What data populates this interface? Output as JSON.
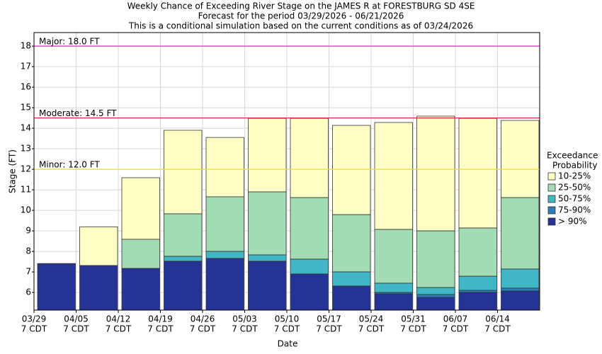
{
  "chart_data": {
    "type": "bar",
    "title": [
      "Weekly Chance of Exceeding River Stage on the JAMES R at FORESTBURG SD 4SE",
      "Forecast for the period 03/29/2026 - 06/21/2026",
      "This is a conditional simulation based on the current conditions as of 03/24/2026"
    ],
    "x_label": "Date",
    "y_label": "Stage (FT)",
    "categories": [
      "03/29",
      "04/05",
      "04/12",
      "04/19",
      "04/26",
      "05/03",
      "05/10",
      "05/17",
      "05/24",
      "05/31",
      "06/07",
      "06/14"
    ],
    "category_time": "7 CDT",
    "legend_title": [
      "Exceedance",
      "Probability"
    ],
    "series": [
      {
        "name": "10-25%",
        "color": "#ffffc6",
        "values": [
          7.41,
          9.2,
          11.59,
          13.9,
          13.55,
          14.48,
          14.48,
          14.14,
          14.28,
          14.59,
          14.48,
          14.38
        ]
      },
      {
        "name": "25-50%",
        "color": "#a3dbb5",
        "values": [
          7.41,
          7.31,
          8.59,
          9.83,
          10.66,
          10.9,
          10.62,
          9.79,
          9.07,
          9.0,
          9.14,
          10.62
        ]
      },
      {
        "name": "50-75%",
        "color": "#41b6c4",
        "values": [
          7.41,
          7.31,
          7.17,
          7.76,
          8.0,
          7.83,
          7.62,
          7.0,
          6.45,
          6.24,
          6.79,
          7.14
        ]
      },
      {
        "name": "75-90%",
        "color": "#2c7fb8",
        "values": [
          7.41,
          7.31,
          7.17,
          7.52,
          7.66,
          7.52,
          6.9,
          6.31,
          6.0,
          5.9,
          6.1,
          6.21
        ]
      },
      {
        "name": "> 90%",
        "color": "#253494",
        "values": [
          7.41,
          7.31,
          7.17,
          7.52,
          7.66,
          7.52,
          6.9,
          6.31,
          5.93,
          5.76,
          6.0,
          6.07
        ]
      }
    ],
    "thresholds": [
      {
        "label": "Major: 18.0 FT",
        "value": 18.0,
        "color": "#cc33cc"
      },
      {
        "label": "Moderate: 14.5 FT",
        "value": 14.5,
        "color": "#cc3344"
      },
      {
        "label": "Minor: 12.0 FT",
        "value": 12.0,
        "color": "#e8e030"
      }
    ],
    "ylim": [
      5.14,
      18.66
    ],
    "yticks": [
      6,
      7,
      8,
      9,
      10,
      11,
      12,
      13,
      14,
      15,
      16,
      17,
      18
    ],
    "grid": true
  }
}
